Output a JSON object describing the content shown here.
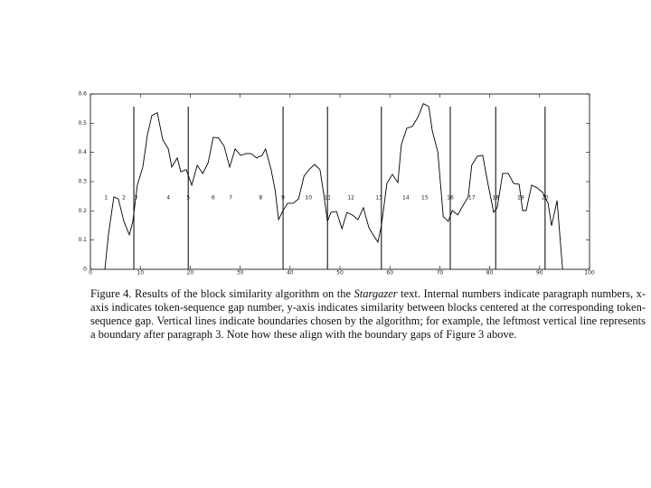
{
  "chart_data": {
    "type": "line",
    "x": [
      2.9,
      3.6,
      4.7,
      5.6,
      6.7,
      7.8,
      8.5,
      9.4,
      10.5,
      11.4,
      12.3,
      13.4,
      14.5,
      15.6,
      16.3,
      17.4,
      18.1,
      19.2,
      20.3,
      21.4,
      22.5,
      23.6,
      24.6,
      25.7,
      26.8,
      27.9,
      29.0,
      30.1,
      31.2,
      32.2,
      33.3,
      34.4,
      35.1,
      36.2,
      37.0,
      37.7,
      38.4,
      39.5,
      40.6,
      41.7,
      42.8,
      43.8,
      44.9,
      46.0,
      46.7,
      47.5,
      48.2,
      49.3,
      50.4,
      51.4,
      52.5,
      53.6,
      54.7,
      55.8,
      56.9,
      57.6,
      58.3,
      59.4,
      60.5,
      61.6,
      62.3,
      63.4,
      64.5,
      65.6,
      66.7,
      67.8,
      68.5,
      69.6,
      70.7,
      71.7,
      72.5,
      73.6,
      74.6,
      75.7,
      76.4,
      77.5,
      78.6,
      79.7,
      80.8,
      81.5,
      82.6,
      83.7,
      84.8,
      85.9,
      86.6,
      87.3,
      88.4,
      89.5,
      90.6,
      91.7,
      92.4,
      93.5,
      94.6
    ],
    "values": [
      0,
      0.118,
      0.248,
      0.241,
      0.164,
      0.118,
      0.164,
      0.288,
      0.35,
      0.458,
      0.526,
      0.536,
      0.443,
      0.412,
      0.35,
      0.381,
      0.334,
      0.341,
      0.288,
      0.356,
      0.328,
      0.365,
      0.452,
      0.449,
      0.421,
      0.35,
      0.412,
      0.39,
      0.396,
      0.396,
      0.381,
      0.39,
      0.412,
      0.341,
      0.272,
      0.17,
      0.195,
      0.226,
      0.226,
      0.241,
      0.319,
      0.341,
      0.359,
      0.341,
      0.263,
      0.164,
      0.195,
      0.198,
      0.139,
      0.195,
      0.186,
      0.17,
      0.211,
      0.142,
      0.111,
      0.093,
      0.149,
      0.294,
      0.325,
      0.297,
      0.427,
      0.483,
      0.489,
      0.52,
      0.567,
      0.557,
      0.474,
      0.402,
      0.18,
      0.164,
      0.201,
      0.186,
      0.217,
      0.248,
      0.356,
      0.387,
      0.39,
      0.288,
      0.195,
      0.211,
      0.328,
      0.328,
      0.294,
      0.291,
      0.201,
      0.201,
      0.288,
      0.279,
      0.263,
      0.226,
      0.149,
      0.235,
      0
    ],
    "color": "#000000",
    "boundaries": [
      8.7,
      19.6,
      38.6,
      47.5,
      58.3,
      72.1,
      81.2,
      91.1
    ],
    "paragraphs": {
      "labels": [
        "1",
        "2",
        "3",
        "4",
        "5",
        "6",
        "7",
        "8",
        "9",
        "10",
        "11",
        "12",
        "13",
        "14",
        "15",
        "16",
        "17",
        "18",
        "19",
        "20"
      ],
      "x": [
        3.1,
        6.7,
        9.1,
        15.6,
        19.6,
        24.6,
        28.1,
        34.1,
        38.6,
        43.7,
        47.5,
        52.2,
        57.8,
        63.2,
        67.0,
        72.1,
        76.4,
        81.2,
        86.2,
        91.1
      ],
      "y": 0.245
    },
    "xlim": [
      0,
      100
    ],
    "xticks": [
      0,
      10,
      20,
      30,
      40,
      50,
      60,
      70,
      80,
      90,
      100
    ],
    "ylim": [
      0,
      0.6
    ],
    "yticks": [
      0,
      0.1,
      0.2,
      0.3,
      0.4,
      0.5,
      0.6
    ],
    "grid": false
  },
  "caption": {
    "before": "Figure 4.  Results of the block similarity algorithm on the ",
    "italic": "Stargazer",
    "after": " text.  Internal numbers indicate paragraph numbers, x-axis indicates token-sequence gap number, y-axis indicates similarity between blocks centered at the corresponding token-sequence gap.  Vertical lines indicate boundaries chosen by the algorithm; for example, the leftmost vertical line represents a boundary after paragraph 3.  Note how these align with the boundary gaps of Figure 3 above."
  }
}
